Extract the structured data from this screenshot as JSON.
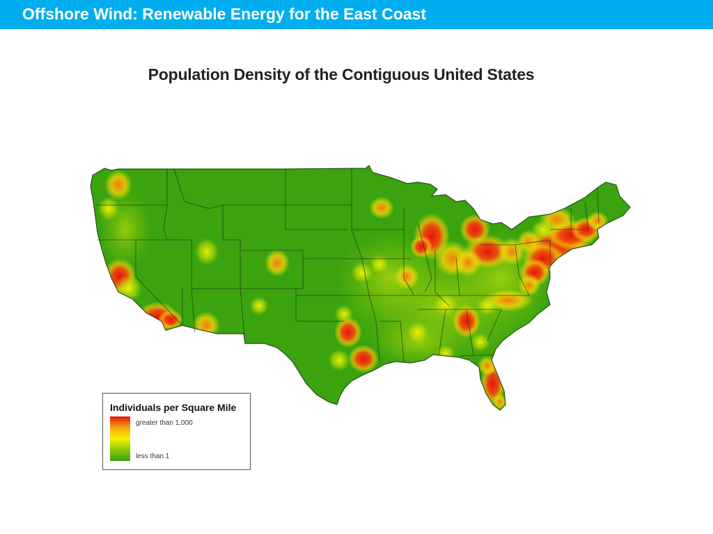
{
  "slide": {
    "title": "Offshore Wind: Renewable Energy for the East Coast",
    "title_bar_color": "#00aeef"
  },
  "map": {
    "title": "Population Density of the Contiguous United States",
    "base_color": "#3aa30e",
    "high_color": "#e8140c",
    "mid_color": "#f6f204",
    "hotspots": [
      "Seattle",
      "Portland",
      "San Francisco Bay Area",
      "Los Angeles",
      "Phoenix",
      "Denver",
      "Salt Lake City",
      "Minneapolis",
      "Chicago",
      "Detroit",
      "Cleveland",
      "Pittsburgh",
      "Northeast Corridor",
      "Dallas",
      "Houston",
      "San Antonio",
      "Atlanta",
      "Charlotte",
      "Florida",
      "St. Louis",
      "Kansas City",
      "Nashville"
    ]
  },
  "legend": {
    "title": "Individuals per Square Mile",
    "high_label": "greater than 1,000",
    "low_label": "less than 1",
    "gradient": [
      "#e8140c",
      "#f6a80a",
      "#f6f204",
      "#8cc70a",
      "#3aa30e"
    ]
  }
}
